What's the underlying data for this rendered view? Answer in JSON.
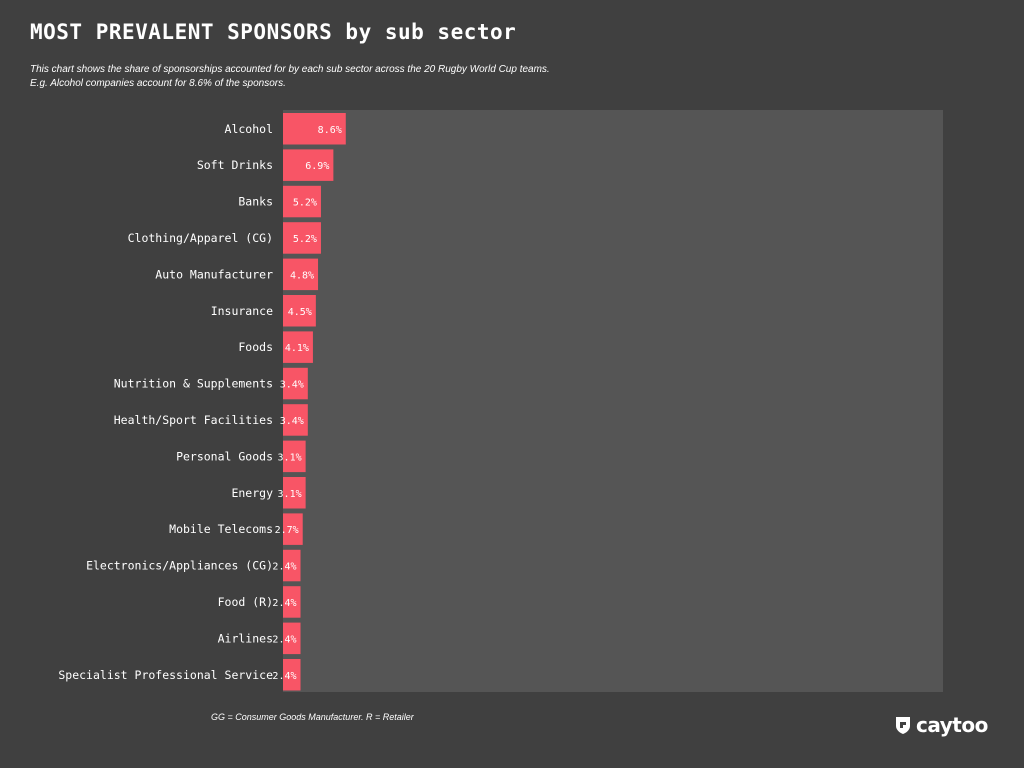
{
  "header": {
    "title": "MOST PREVALENT SPONSORS by sub sector",
    "subtitle_line1": "This chart shows the share of sponsorships accounted for by each sub sector across the 20 Rugby World Cup teams.",
    "subtitle_line2": "E.g. Alcohol companies account for 8.6% of the sponsors."
  },
  "footnote": "GG = Consumer Goods Manufacturer. R = Retailer",
  "brand": {
    "name": "caytoo",
    "logo_icon": "caytoo-shield-icon"
  },
  "colors": {
    "background": "#404040",
    "plot_area": "#555555",
    "bar": "#f85566",
    "text": "#ffffff"
  },
  "chart_data": {
    "type": "bar",
    "orientation": "horizontal",
    "categories": [
      "Alcohol",
      "Soft Drinks",
      "Banks",
      "Clothing/Apparel (CG)",
      "Auto Manufacturer",
      "Insurance",
      "Foods",
      "Nutrition & Supplements",
      "Health/Sport Facilities",
      "Personal Goods",
      "Energy",
      "Mobile Telecoms",
      "Electronics/Appliances (CG)",
      "Food (R)",
      "Airlines",
      "Specialist Professional Service"
    ],
    "values": [
      8.6,
      6.9,
      5.2,
      5.2,
      4.8,
      4.5,
      4.1,
      3.4,
      3.4,
      3.1,
      3.1,
      2.7,
      2.4,
      2.4,
      2.4,
      2.4
    ],
    "data_labels": [
      "8.6%",
      "6.9%",
      "5.2%",
      "5.2%",
      "4.8%",
      "4.5%",
      "4.1%",
      "3.4%",
      "3.4%",
      "3.1%",
      "3.1%",
      "2.7%",
      "2.4%",
      "2.4%",
      "2.4%",
      "2.4%"
    ],
    "unit": "%",
    "xlim": [
      0,
      9
    ],
    "grid": false,
    "legend": "none"
  }
}
